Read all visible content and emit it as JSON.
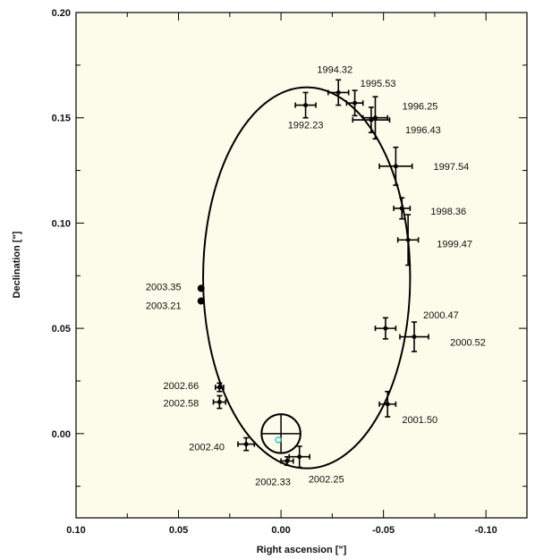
{
  "chart_data": {
    "type": "scatter",
    "title": "",
    "xlabel": "Right ascension [\"]",
    "ylabel": "Declination [\"]",
    "xlim": [
      0.1,
      -0.12
    ],
    "ylim": [
      -0.04,
      0.2
    ],
    "x_ticks": [
      0.1,
      0.05,
      0.0,
      -0.05,
      -0.1
    ],
    "x_tick_labels": [
      "0.10",
      "0.05",
      "0.00",
      "-0.05",
      "-0.10"
    ],
    "y_ticks": [
      0.0,
      0.05,
      0.1,
      0.15,
      0.2
    ],
    "y_tick_labels": [
      "0.00",
      "0.05",
      "0.10",
      "0.15",
      "0.20"
    ],
    "grid": false,
    "background_color": "#fdfbe9",
    "line_color": "#000000",
    "center_marker_color": "#3fc6c6",
    "orbit": {
      "center": [
        -0.0125,
        0.074
      ],
      "semi_axis_x": 0.0505,
      "semi_axis_y": 0.0905
    },
    "center_marker": {
      "x": 0.0,
      "y": 0.0,
      "radius": 0.0095
    },
    "points": [
      {
        "label": "1992.23",
        "x": -0.012,
        "y": 0.156,
        "xerr": 0.005,
        "yerr": 0.006
      },
      {
        "label": "1994.32",
        "x": -0.028,
        "y": 0.162,
        "xerr": 0.005,
        "yerr": 0.006
      },
      {
        "label": "1995.53",
        "x": -0.036,
        "y": 0.157,
        "xerr": 0.004,
        "yerr": 0.006
      },
      {
        "label": "1996.25",
        "x": -0.046,
        "y": 0.15,
        "xerr": 0.006,
        "yerr": 0.01
      },
      {
        "label": "1996.43",
        "x": -0.044,
        "y": 0.149,
        "xerr": 0.009,
        "yerr": 0.006
      },
      {
        "label": "1997.54",
        "x": -0.056,
        "y": 0.127,
        "xerr": 0.008,
        "yerr": 0.009
      },
      {
        "label": "1998.36",
        "x": -0.059,
        "y": 0.107,
        "xerr": 0.004,
        "yerr": 0.005
      },
      {
        "label": "1999.47",
        "x": -0.062,
        "y": 0.092,
        "xerr": 0.005,
        "yerr": 0.012
      },
      {
        "label": "2000.47",
        "x": -0.051,
        "y": 0.05,
        "xerr": 0.005,
        "yerr": 0.005
      },
      {
        "label": "2000.52",
        "x": -0.065,
        "y": 0.046,
        "xerr": 0.007,
        "yerr": 0.007
      },
      {
        "label": "2001.50",
        "x": -0.052,
        "y": 0.014,
        "xerr": 0.004,
        "yerr": 0.006
      },
      {
        "label": "2002.25",
        "x": -0.009,
        "y": -0.011,
        "xerr": 0.005,
        "yerr": 0.005
      },
      {
        "label": "2002.33",
        "x": -0.003,
        "y": -0.013,
        "xerr": 0.003,
        "yerr": 0.002
      },
      {
        "label": "2002.40",
        "x": 0.017,
        "y": -0.005,
        "xerr": 0.004,
        "yerr": 0.003
      },
      {
        "label": "2002.58",
        "x": 0.03,
        "y": 0.015,
        "xerr": 0.003,
        "yerr": 0.003
      },
      {
        "label": "2002.66",
        "x": 0.03,
        "y": 0.022,
        "xerr": 0.002,
        "yerr": 0.002
      },
      {
        "label": "2003.21",
        "x": 0.039,
        "y": 0.063,
        "xerr": 0.0,
        "yerr": 0.0
      },
      {
        "label": "2003.35",
        "x": 0.039,
        "y": 0.069,
        "xerr": 0.0,
        "yerr": 0.0
      }
    ]
  }
}
